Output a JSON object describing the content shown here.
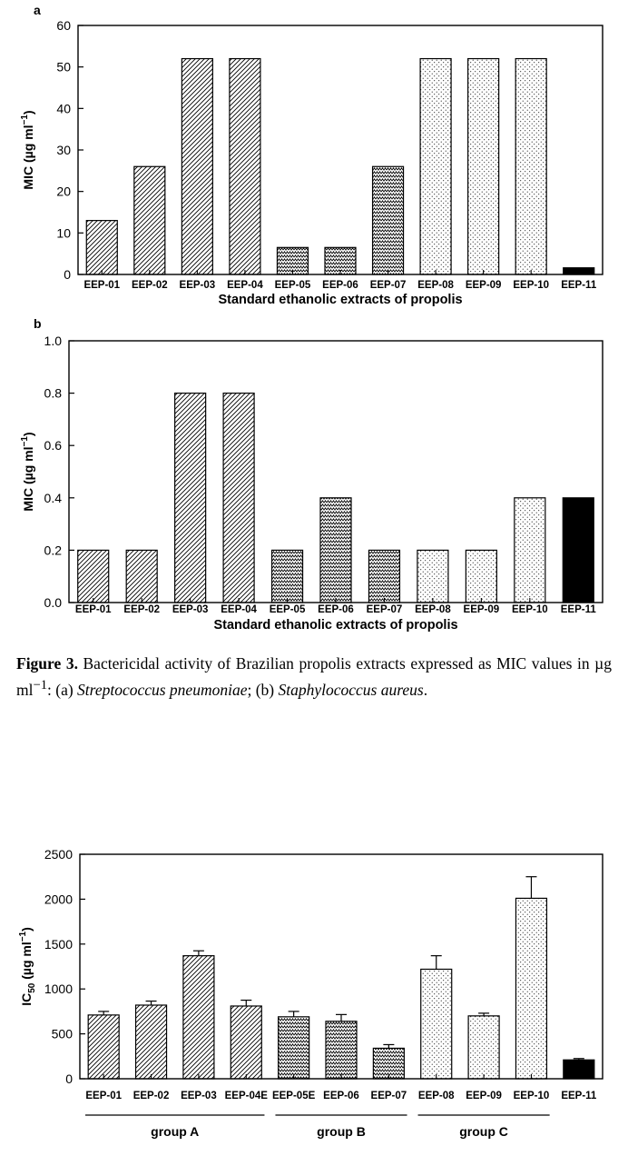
{
  "chart_data": [
    {
      "type": "bar",
      "panel_label": "a",
      "categories": [
        "EEP-01",
        "EEP-02",
        "EEP-03",
        "EEP-04",
        "EEP-05",
        "EEP-06",
        "EEP-07",
        "EEP-08",
        "EEP-09",
        "EEP-10",
        "EEP-11"
      ],
      "values": [
        13,
        26,
        52,
        52,
        6.5,
        6.5,
        26,
        52,
        52,
        52,
        1.6
      ],
      "patterns": [
        "diag",
        "diag",
        "diag",
        "diag",
        "zig",
        "zig",
        "zig",
        "dots",
        "dots",
        "dots",
        "solid"
      ],
      "ylabel_main": "MIC (µg ml",
      "ylabel_exp": "−1",
      "ylabel_close": ")",
      "xlabel": "Standard ethanolic extracts of propolis",
      "ylim": [
        0,
        60
      ],
      "yticks": [
        "0",
        "10",
        "20",
        "30",
        "40",
        "50",
        "60"
      ],
      "grid": false
    },
    {
      "type": "bar",
      "panel_label": "b",
      "categories": [
        "EEP-01",
        "EEP-02",
        "EEP-03",
        "EEP-04",
        "EEP-05",
        "EEP-06",
        "EEP-07",
        "EEP-08",
        "EEP-09",
        "EEP-10",
        "EEP-11"
      ],
      "values": [
        0.2,
        0.2,
        0.8,
        0.8,
        0.2,
        0.4,
        0.2,
        0.2,
        0.2,
        0.4,
        0.4
      ],
      "patterns": [
        "diag",
        "diag",
        "diag",
        "diag",
        "zig",
        "zig",
        "zig",
        "dots",
        "dots",
        "dots",
        "solid"
      ],
      "ylabel_main": "MIC (µg ml",
      "ylabel_exp": "−1",
      "ylabel_close": ")",
      "xlabel": "Standard ethanolic extracts of propolis",
      "ylim": [
        0,
        1.0
      ],
      "yticks": [
        "0.0",
        "0.2",
        "0.4",
        "0.6",
        "0.8",
        "1.0"
      ],
      "grid": false
    },
    {
      "type": "bar",
      "panel_label": "",
      "categories": [
        "EEP-01",
        "EEP-02",
        "EEP-03",
        "EEP-04E",
        "EEP-05E",
        "EEP-06",
        "EEP-07",
        "EEP-08",
        "EEP-09",
        "EEP-10",
        "EEP-11"
      ],
      "values": [
        710,
        820,
        1370,
        810,
        690,
        640,
        340,
        1220,
        700,
        2010,
        210
      ],
      "errors": [
        40,
        45,
        55,
        65,
        60,
        75,
        40,
        150,
        30,
        240,
        15
      ],
      "patterns": [
        "diag",
        "diag",
        "diag",
        "diag",
        "zig",
        "zig",
        "zig",
        "dots",
        "dots",
        "dots",
        "solid"
      ],
      "ylabel_main": "IC",
      "ylabel_sub": "50",
      "ylabel_rest": " (µg ml",
      "ylabel_exp": "−1",
      "ylabel_close": ")",
      "xlabel": "",
      "ylim": [
        0,
        2500
      ],
      "yticks": [
        "0",
        "500",
        "1000",
        "1500",
        "2000",
        "2500"
      ],
      "groups": [
        {
          "label": "group A",
          "from": 0,
          "to": 3
        },
        {
          "label": "group B",
          "from": 4,
          "to": 6
        },
        {
          "label": "group C",
          "from": 7,
          "to": 9
        }
      ],
      "grid": false
    }
  ],
  "caption": {
    "lead": "Figure 3.",
    "text1": " Bactericidal activity of Brazilian propolis extracts expressed as MIC values in µg ml",
    "sup": "−1",
    "text2": ": (a) ",
    "species_a": "Streptococcus pneumoniae",
    "text3": "; (b) ",
    "species_b": "Staphylococcus aureus",
    "text4": "."
  }
}
